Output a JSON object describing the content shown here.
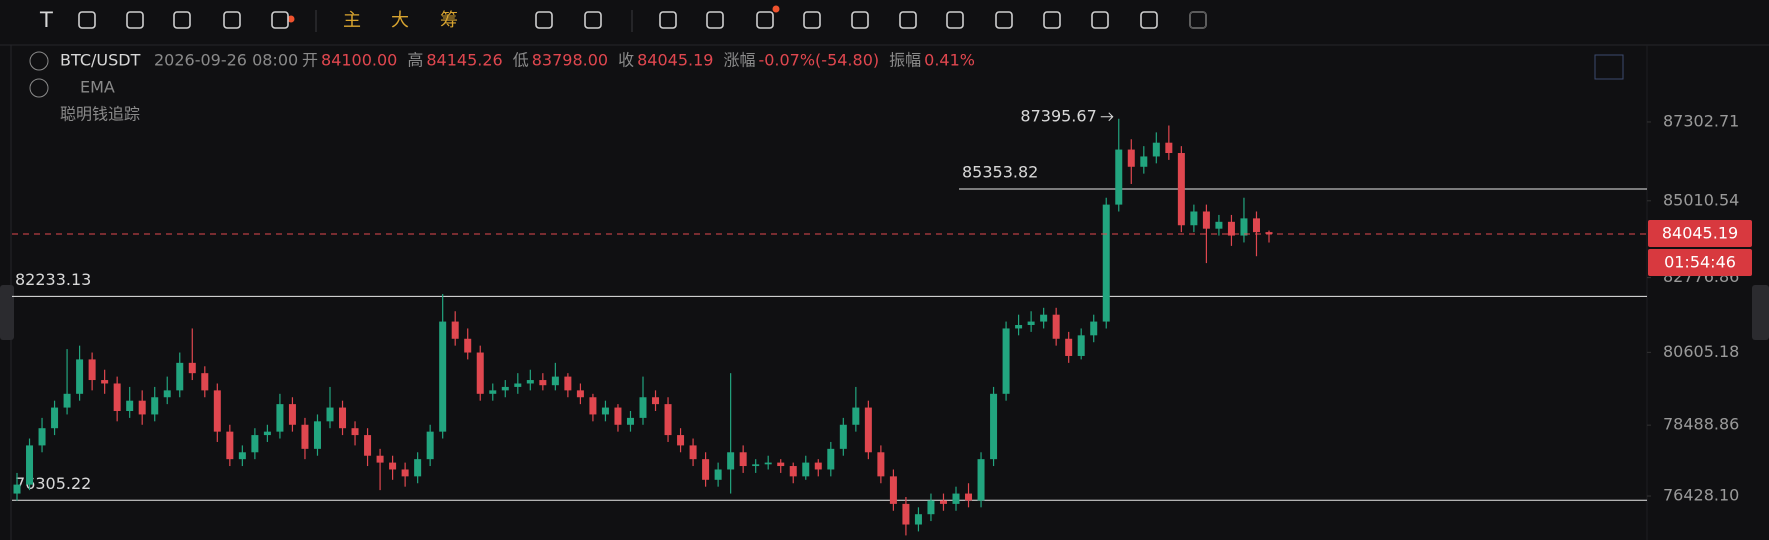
{
  "toolbar": {
    "buttons": [
      "T",
      "主",
      "大",
      "筹"
    ]
  },
  "header": {
    "symbol": "BTC/USDT",
    "datetime": "2026-09-26 08:00",
    "fields": [
      {
        "label": "开",
        "value": "84100.00"
      },
      {
        "label": "高",
        "value": "84145.26"
      },
      {
        "label": "低",
        "value": "83798.00"
      },
      {
        "label": "收",
        "value": "84045.19"
      },
      {
        "label": "涨幅",
        "value": "-0.07%(-54.80)"
      },
      {
        "label": "振幅",
        "value": "0.41%"
      }
    ]
  },
  "indicators": [
    "EMA",
    "聪明钱追踪"
  ],
  "chart_data": {
    "type": "candlestick",
    "up_color": "#22a57f",
    "down_color": "#e0474f",
    "ylim": [
      75150,
      89540
    ],
    "yticks": [
      {
        "value": 76428.1,
        "label": "76428.10"
      },
      78488.86,
      80605.18,
      82776.86,
      85010.54,
      87302.71
    ],
    "hlines": [
      85353.82,
      82233.13,
      76305.22
    ],
    "countdown": "01:54:46",
    "ohlc": [
      [
        76500,
        77100,
        76300,
        76760
      ],
      [
        76760,
        78100,
        76600,
        77900
      ],
      [
        77900,
        78700,
        77700,
        78400
      ],
      [
        78400,
        79200,
        78200,
        79000
      ],
      [
        79000,
        80700,
        78800,
        79400
      ],
      [
        79400,
        80800,
        79200,
        80400
      ],
      [
        80400,
        80600,
        79500,
        79800
      ],
      [
        79800,
        80100,
        79400,
        79700
      ],
      [
        79700,
        79900,
        78600,
        78900
      ],
      [
        78900,
        79600,
        78700,
        79200
      ],
      [
        79200,
        79500,
        78500,
        78800
      ],
      [
        78800,
        79600,
        78600,
        79300
      ],
      [
        79300,
        79900,
        79100,
        79500
      ],
      [
        79500,
        80600,
        79300,
        80300
      ],
      [
        80300,
        81300,
        79800,
        80000
      ],
      [
        80000,
        80200,
        79300,
        79500
      ],
      [
        79500,
        79700,
        78000,
        78300
      ],
      [
        78300,
        78500,
        77300,
        77500
      ],
      [
        77500,
        77900,
        77300,
        77700
      ],
      [
        77700,
        78400,
        77500,
        78200
      ],
      [
        78200,
        78500,
        78000,
        78300
      ],
      [
        78300,
        79400,
        78100,
        79100
      ],
      [
        79100,
        79300,
        78300,
        78500
      ],
      [
        78500,
        78700,
        77500,
        77800
      ],
      [
        77800,
        78800,
        77600,
        78600
      ],
      [
        78600,
        79600,
        78400,
        79000
      ],
      [
        79000,
        79200,
        78200,
        78400
      ],
      [
        78400,
        78600,
        77900,
        78200
      ],
      [
        78200,
        78400,
        77300,
        77600
      ],
      [
        77600,
        77800,
        76600,
        77400
      ],
      [
        77400,
        77600,
        76900,
        77200
      ],
      [
        77200,
        77400,
        76700,
        77000
      ],
      [
        77000,
        77700,
        76800,
        77500
      ],
      [
        77500,
        78500,
        77300,
        78300
      ],
      [
        78300,
        82300,
        78100,
        81500
      ],
      [
        81500,
        81800,
        80800,
        81000
      ],
      [
        81000,
        81300,
        80400,
        80600
      ],
      [
        80600,
        80800,
        79200,
        79400
      ],
      [
        79400,
        79700,
        79200,
        79500
      ],
      [
        79500,
        79800,
        79300,
        79600
      ],
      [
        79600,
        80000,
        79400,
        79700
      ],
      [
        79700,
        80100,
        79500,
        79800
      ],
      [
        79800,
        80000,
        79500,
        79650
      ],
      [
        79650,
        80300,
        79500,
        79900
      ],
      [
        79900,
        80000,
        79300,
        79500
      ],
      [
        79500,
        79700,
        79100,
        79300
      ],
      [
        79300,
        79400,
        78600,
        78800
      ],
      [
        78800,
        79200,
        78600,
        79000
      ],
      [
        79000,
        79100,
        78300,
        78500
      ],
      [
        78500,
        78900,
        78300,
        78700
      ],
      [
        78700,
        79900,
        78500,
        79300
      ],
      [
        79300,
        79500,
        78900,
        79100
      ],
      [
        79100,
        79300,
        78000,
        78200
      ],
      [
        78200,
        78400,
        77700,
        77900
      ],
      [
        77900,
        78100,
        77300,
        77500
      ],
      [
        77500,
        77700,
        76700,
        76900
      ],
      [
        76900,
        77400,
        76700,
        77200
      ],
      [
        77200,
        80000,
        76500,
        77700
      ],
      [
        77700,
        77900,
        77100,
        77300
      ],
      [
        77300,
        77500,
        77100,
        77350
      ],
      [
        77350,
        77600,
        77200,
        77400
      ],
      [
        77400,
        77500,
        77100,
        77300
      ],
      [
        77300,
        77400,
        76800,
        77000
      ],
      [
        77000,
        77600,
        76900,
        77400
      ],
      [
        77400,
        77500,
        77000,
        77200
      ],
      [
        77200,
        78000,
        77000,
        77800
      ],
      [
        77800,
        78700,
        77600,
        78500
      ],
      [
        78500,
        79600,
        78300,
        79000
      ],
      [
        79000,
        79200,
        77500,
        77700
      ],
      [
        77700,
        77900,
        76800,
        77000
      ],
      [
        77000,
        77200,
        76000,
        76200
      ],
      [
        76200,
        76400,
        75283,
        75600
      ],
      [
        75600,
        76100,
        75400,
        75900
      ],
      [
        75900,
        76500,
        75700,
        76300
      ],
      [
        76300,
        76500,
        76000,
        76200
      ],
      [
        76200,
        76700,
        76000,
        76500
      ],
      [
        76500,
        76800,
        76100,
        76300
      ],
      [
        76300,
        77700,
        76100,
        77500
      ],
      [
        77500,
        79600,
        77300,
        79400
      ],
      [
        79400,
        81500,
        79200,
        81300
      ],
      [
        81300,
        81700,
        81100,
        81400
      ],
      [
        81400,
        81800,
        81200,
        81500
      ],
      [
        81500,
        81900,
        81300,
        81700
      ],
      [
        81700,
        81900,
        80800,
        81000
      ],
      [
        81000,
        81200,
        80300,
        80500
      ],
      [
        80500,
        81300,
        80400,
        81100
      ],
      [
        81100,
        81700,
        80900,
        81500
      ],
      [
        81500,
        85100,
        81300,
        84900
      ],
      [
        84900,
        87395.67,
        84700,
        86500
      ],
      [
        86500,
        86800,
        85500,
        86000
      ],
      [
        86000,
        86600,
        85800,
        86300
      ],
      [
        86300,
        87000,
        86100,
        86700
      ],
      [
        86700,
        87200,
        86200,
        86400
      ],
      [
        86400,
        86600,
        84100,
        84300
      ],
      [
        84300,
        84900,
        84100,
        84700
      ],
      [
        84700,
        84900,
        83200,
        84200
      ],
      [
        84200,
        84600,
        84000,
        84400
      ],
      [
        84400,
        84600,
        83700,
        84000
      ],
      [
        84000,
        85100,
        83800,
        84500
      ],
      [
        84500,
        84700,
        83400,
        84100
      ],
      [
        84100,
        84145.26,
        83798,
        84045.19
      ]
    ]
  }
}
